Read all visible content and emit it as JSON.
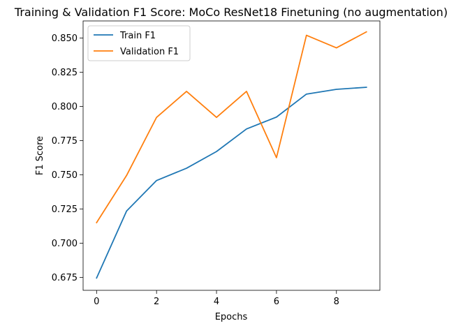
{
  "chart_data": {
    "type": "line",
    "title": "Training & Validation F1 Score: MoCo ResNet18 Finetuning (no augmentation)",
    "xlabel": "Epochs",
    "ylabel": "F1 Score",
    "x": [
      0,
      1,
      2,
      3,
      4,
      5,
      6,
      7,
      8,
      9
    ],
    "xlim": [
      -0.45,
      9.45
    ],
    "ylim": [
      0.6655,
      0.8625
    ],
    "xticks": [
      0,
      2,
      4,
      6,
      8
    ],
    "yticks": [
      0.675,
      0.7,
      0.725,
      0.75,
      0.775,
      0.8,
      0.825,
      0.85
    ],
    "ytick_labels": [
      "0.675",
      "0.700",
      "0.725",
      "0.750",
      "0.775",
      "0.800",
      "0.825",
      "0.850"
    ],
    "grid": false,
    "legend_position": "upper-left",
    "series": [
      {
        "name": "Train F1",
        "color": "#1f77b4",
        "values": [
          0.6745,
          0.7235,
          0.7458,
          0.7548,
          0.767,
          0.7835,
          0.7922,
          0.809,
          0.8125,
          0.814
        ]
      },
      {
        "name": "Validation F1",
        "color": "#ff7f0e",
        "values": [
          0.715,
          0.7495,
          0.792,
          0.811,
          0.792,
          0.811,
          0.7625,
          0.852,
          0.8428,
          0.8545
        ]
      }
    ]
  }
}
